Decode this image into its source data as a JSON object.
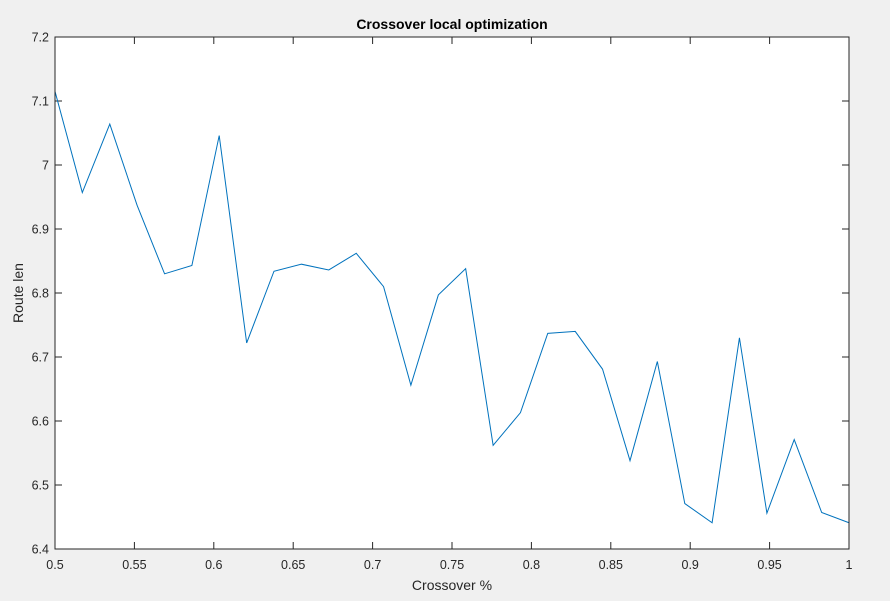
{
  "chart_data": {
    "type": "line",
    "title": "Crossover local optimization",
    "xlabel": "Crossover %",
    "ylabel": "Route len",
    "xlim": [
      0.5,
      1
    ],
    "ylim": [
      6.4,
      7.2
    ],
    "xticks": [
      "0.5",
      "0.55",
      "0.6",
      "0.65",
      "0.7",
      "0.75",
      "0.8",
      "0.85",
      "0.9",
      "0.95",
      "1"
    ],
    "xtick_values": [
      0.5,
      0.55,
      0.6,
      0.65,
      0.7,
      0.75,
      0.8,
      0.85,
      0.9,
      0.95,
      1
    ],
    "yticks": [
      "6.4",
      "6.5",
      "6.6",
      "6.7",
      "6.8",
      "6.9",
      "7",
      "7.1",
      "7.2"
    ],
    "ytick_values": [
      6.4,
      6.5,
      6.6,
      6.7,
      6.8,
      6.9,
      7.0,
      7.1,
      7.2
    ],
    "grid": false,
    "box": true,
    "series": [
      {
        "color": "#0072bd",
        "x": [
          0.5,
          0.5172,
          0.5345,
          0.5517,
          0.569,
          0.5862,
          0.6034,
          0.6207,
          0.6379,
          0.6552,
          0.6724,
          0.6897,
          0.7069,
          0.7241,
          0.7414,
          0.7586,
          0.7759,
          0.7931,
          0.8103,
          0.8276,
          0.8448,
          0.8621,
          0.8793,
          0.8966,
          0.9138,
          0.931,
          0.9483,
          0.9655,
          0.9828,
          1.0
        ],
        "y": [
          7.115,
          6.957,
          7.064,
          6.937,
          6.83,
          6.843,
          7.046,
          6.722,
          6.834,
          6.845,
          6.836,
          6.862,
          6.81,
          6.656,
          6.797,
          6.838,
          6.562,
          6.613,
          6.737,
          6.74,
          6.681,
          6.538,
          6.693,
          6.471,
          6.441,
          6.73,
          6.456,
          6.571,
          6.457,
          6.441
        ]
      }
    ]
  }
}
